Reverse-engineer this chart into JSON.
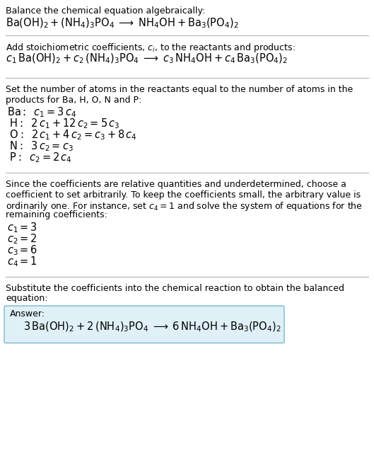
{
  "bg_color": "#ffffff",
  "text_color": "#000000",
  "box_bg_color": "#dff0f7",
  "box_border_color": "#7ab8d0",
  "section1_title": "Balance the chemical equation algebraically:",
  "section1_eq": "$\\mathrm{Ba(OH)_2 + (NH_4)_3PO_4 \\;\\longrightarrow\\; NH_4OH + Ba_3(PO_4)_2}$",
  "section2_title": "Add stoichiometric coefficients, $c_i$, to the reactants and products:",
  "section2_eq": "$c_1\\,\\mathrm{Ba(OH)_2} + c_2\\,(\\mathrm{NH_4})_3\\mathrm{PO_4} \\;\\longrightarrow\\; c_3\\,\\mathrm{NH_4OH} + c_4\\,\\mathrm{Ba_3(PO_4)_2}$",
  "section3_title_line1": "Set the number of atoms in the reactants equal to the number of atoms in the",
  "section3_title_line2": "products for Ba, H, O, N and P:",
  "section3_lines": [
    "$\\mathrm{Ba:}\\;\\; c_1 = 3\\,c_4$",
    "$\\;\\mathrm{H:}\\;\\; 2\\,c_1 + 12\\,c_2 = 5\\,c_3$",
    "$\\;\\mathrm{O:}\\;\\; 2\\,c_1 + 4\\,c_2 = c_3 + 8\\,c_4$",
    "$\\;\\mathrm{N:}\\;\\; 3\\,c_2 = c_3$",
    "$\\;\\mathrm{P:}\\;\\; c_2 = 2\\,c_4$"
  ],
  "section4_title_lines": [
    "Since the coefficients are relative quantities and underdetermined, choose a",
    "coefficient to set arbitrarily. To keep the coefficients small, the arbitrary value is",
    "ordinarily one. For instance, set $c_4 = 1$ and solve the system of equations for the",
    "remaining coefficients:"
  ],
  "section4_lines": [
    "$c_1 = 3$",
    "$c_2 = 2$",
    "$c_3 = 6$",
    "$c_4 = 1$"
  ],
  "section5_title_line1": "Substitute the coefficients into the chemical reaction to obtain the balanced",
  "section5_title_line2": "equation:",
  "answer_label": "Answer:",
  "answer_eq": "$3\\,\\mathrm{Ba(OH)_2} + 2\\,(\\mathrm{NH_4})_3\\mathrm{PO_4} \\;\\longrightarrow\\; 6\\,\\mathrm{NH_4OH} + \\mathrm{Ba_3(PO_4)_2}$"
}
